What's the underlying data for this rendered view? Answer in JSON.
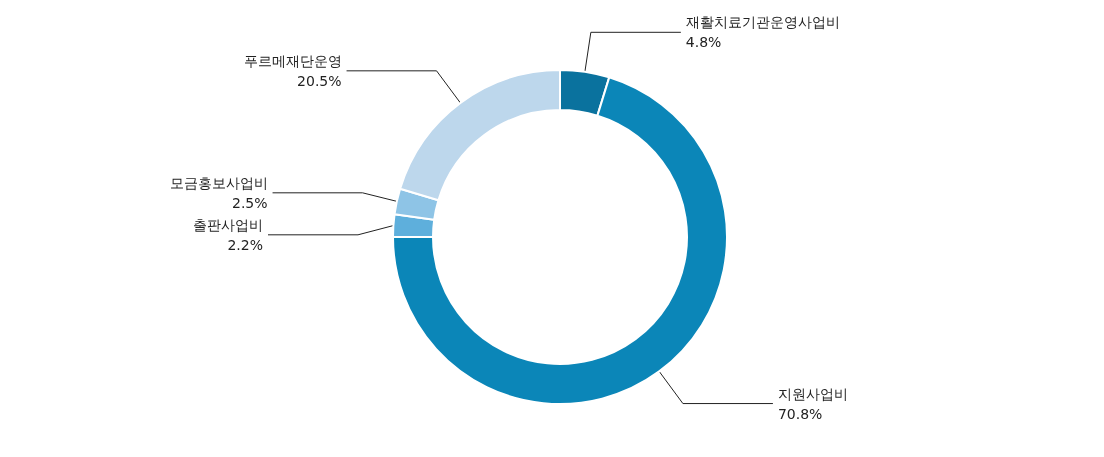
{
  "chart_data": {
    "type": "donut",
    "categories": [
      "재활치료기관운영사업비",
      "지원사업비",
      "출판사업비",
      "모금홍보사업비",
      "푸르메재단운영"
    ],
    "values": [
      4.8,
      70.8,
      2.2,
      2.5,
      20.5
    ],
    "value_labels": [
      "4.8%",
      "70.8%",
      "2.2%",
      "2.5%",
      "20.5%"
    ],
    "colors": [
      "#0a729e",
      "#0b86b8",
      "#5eafdc",
      "#8ec4e6",
      "#bdd7ec"
    ],
    "legend": false
  }
}
